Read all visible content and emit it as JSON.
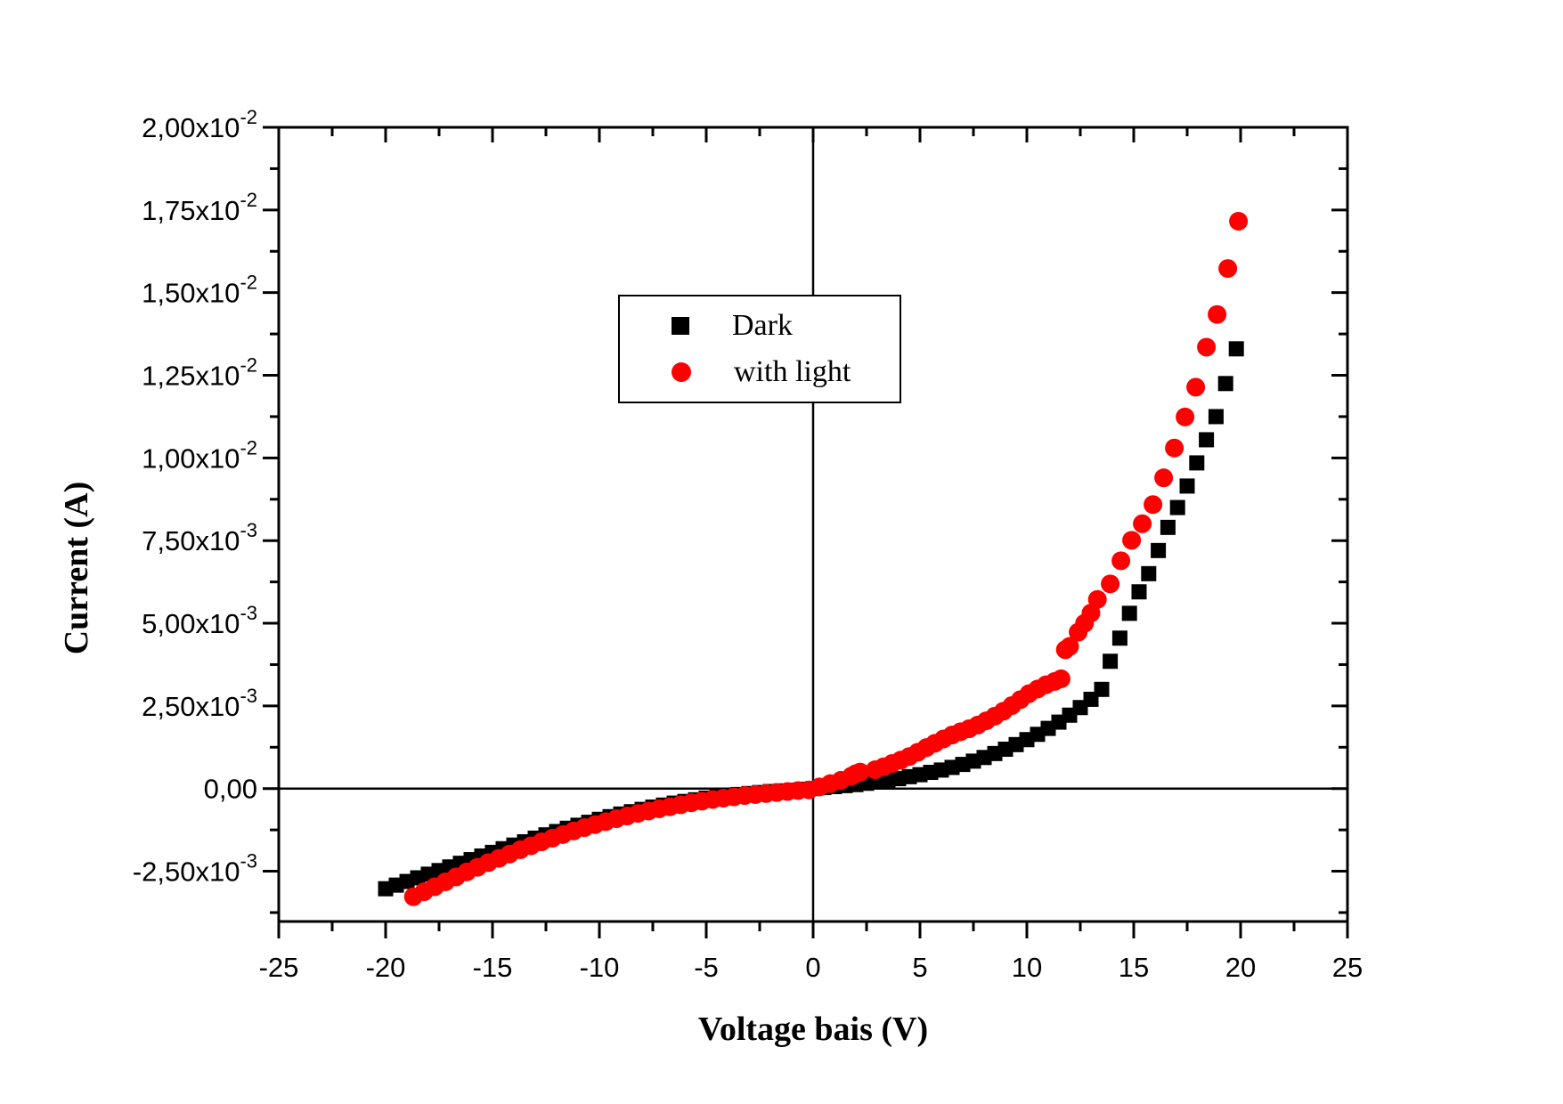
{
  "chart_data": {
    "type": "scatter",
    "title": "",
    "xlabel": "Voltage bais (V)",
    "ylabel": "Current (A)",
    "xlim": [
      -25,
      25
    ],
    "ylim": [
      -0.00402,
      0.02
    ],
    "grid": false,
    "background": "#ffffff",
    "axis_color": "#000000",
    "zero_lines": true,
    "x_ticks": [
      -25,
      -20,
      -15,
      -10,
      -5,
      0,
      5,
      10,
      15,
      20,
      25
    ],
    "x_minor_step": 2.5,
    "y_minor_step": 0.00125,
    "superscript_joiner": "x10",
    "y_ticks": [
      {
        "v": 0.02,
        "m": "2,00",
        "e": "-2"
      },
      {
        "v": 0.0175,
        "m": "1,75",
        "e": "-2"
      },
      {
        "v": 0.015,
        "m": "1,50",
        "e": "-2"
      },
      {
        "v": 0.0125,
        "m": "1,25",
        "e": "-2"
      },
      {
        "v": 0.01,
        "m": "1,00",
        "e": "-2"
      },
      {
        "v": 0.0075,
        "m": "7,50",
        "e": "-3"
      },
      {
        "v": 0.005,
        "m": "5,00",
        "e": "-3"
      },
      {
        "v": 0.0025,
        "m": "2,50",
        "e": "-3"
      },
      {
        "v": 0,
        "m": "0,00",
        "e": null
      },
      {
        "v": -0.0025,
        "m": "-2,50",
        "e": "-3"
      }
    ],
    "legend": {
      "position": "top-center",
      "border_color": "#000000",
      "background": "#ffffff",
      "entries": [
        {
          "label": "Dark",
          "marker": "square",
          "color": "#000000"
        },
        {
          "label": "with light",
          "marker": "circle",
          "color": "#ff0000"
        }
      ]
    },
    "series": [
      {
        "name": "Dark",
        "marker": "square",
        "color": "#000000",
        "points": [
          [
            -20,
            -0.00303
          ],
          [
            -19.5,
            -0.00292
          ],
          [
            -19,
            -0.00281
          ],
          [
            -18.5,
            -0.0027
          ],
          [
            -18,
            -0.00259
          ],
          [
            -17.5,
            -0.00248
          ],
          [
            -17,
            -0.00237
          ],
          [
            -16.5,
            -0.00226
          ],
          [
            -16,
            -0.00215
          ],
          [
            -15.5,
            -0.00204
          ],
          [
            -15,
            -0.00193
          ],
          [
            -14.5,
            -0.00182
          ],
          [
            -14,
            -0.00171
          ],
          [
            -13.5,
            -0.00161
          ],
          [
            -13,
            -0.0015
          ],
          [
            -12.5,
            -0.0014
          ],
          [
            -12,
            -0.0013
          ],
          [
            -11.5,
            -0.0012
          ],
          [
            -11,
            -0.00111
          ],
          [
            -10.5,
            -0.00102
          ],
          [
            -10,
            -0.00093
          ],
          [
            -9.5,
            -0.00085
          ],
          [
            -9,
            -0.00077
          ],
          [
            -8.5,
            -0.0007
          ],
          [
            -8,
            -0.00063
          ],
          [
            -7.5,
            -0.00056
          ],
          [
            -7,
            -0.0005
          ],
          [
            -6.5,
            -0.00044
          ],
          [
            -6,
            -0.00039
          ],
          [
            -5.5,
            -0.00034
          ],
          [
            -5,
            -0.00029
          ],
          [
            -4.5,
            -0.00025
          ],
          [
            -4,
            -0.00021
          ],
          [
            -3.5,
            -0.00018
          ],
          [
            -3,
            -0.00015
          ],
          [
            -2.5,
            -0.00012
          ],
          [
            -2,
            -9e-05
          ],
          [
            -1.5,
            -7e-05
          ],
          [
            -1,
            -5e-05
          ],
          [
            -0.5,
            -2e-05
          ],
          [
            0,
            0
          ],
          [
            0.5,
            3e-05
          ],
          [
            1,
            6e-05
          ],
          [
            1.5,
            9e-05
          ],
          [
            2,
            0.00012
          ],
          [
            2.5,
            0.00016
          ],
          [
            3,
            0.0002
          ],
          [
            3.5,
            0.00025
          ],
          [
            4,
            0.0003
          ],
          [
            4.5,
            0.00036
          ],
          [
            5,
            0.00042
          ],
          [
            5.5,
            0.00049
          ],
          [
            6,
            0.00056
          ],
          [
            6.5,
            0.00064
          ],
          [
            7,
            0.00073
          ],
          [
            7.5,
            0.00083
          ],
          [
            8,
            0.00094
          ],
          [
            8.5,
            0.00106
          ],
          [
            9,
            0.00119
          ],
          [
            9.5,
            0.00133
          ],
          [
            10,
            0.00148
          ],
          [
            10.5,
            0.00164
          ],
          [
            11,
            0.00182
          ],
          [
            11.5,
            0.00201
          ],
          [
            12,
            0.00222
          ],
          [
            12.5,
            0.00245
          ],
          [
            13,
            0.0027
          ],
          [
            13.5,
            0.003
          ],
          [
            13.9,
            0.00385
          ],
          [
            14.35,
            0.00455
          ],
          [
            14.8,
            0.0053
          ],
          [
            15.25,
            0.00595
          ],
          [
            15.7,
            0.0065
          ],
          [
            16.15,
            0.0072
          ],
          [
            16.6,
            0.0079
          ],
          [
            17.05,
            0.0085
          ],
          [
            17.5,
            0.00915
          ],
          [
            17.95,
            0.00985
          ],
          [
            18.4,
            0.01055
          ],
          [
            18.85,
            0.01125
          ],
          [
            19.3,
            0.01225
          ],
          [
            19.8,
            0.0133
          ]
        ]
      },
      {
        "name": "with light",
        "marker": "circle",
        "color": "#ff0000",
        "points": [
          [
            -18.7,
            -0.00327
          ],
          [
            -18.2,
            -0.00312
          ],
          [
            -17.7,
            -0.00297
          ],
          [
            -17.2,
            -0.00282
          ],
          [
            -16.7,
            -0.00267
          ],
          [
            -16.2,
            -0.00252
          ],
          [
            -15.7,
            -0.00238
          ],
          [
            -15.2,
            -0.00224
          ],
          [
            -14.7,
            -0.00211
          ],
          [
            -14.2,
            -0.00198
          ],
          [
            -13.7,
            -0.00185
          ],
          [
            -13.2,
            -0.00173
          ],
          [
            -12.7,
            -0.00161
          ],
          [
            -12.2,
            -0.0015
          ],
          [
            -11.7,
            -0.00139
          ],
          [
            -11.2,
            -0.00128
          ],
          [
            -10.7,
            -0.00118
          ],
          [
            -10.2,
            -0.00109
          ],
          [
            -9.7,
            -0.001
          ],
          [
            -9.2,
            -0.00091
          ],
          [
            -8.7,
            -0.00083
          ],
          [
            -8.2,
            -0.00075
          ],
          [
            -7.7,
            -0.00068
          ],
          [
            -7.2,
            -0.00061
          ],
          [
            -6.7,
            -0.00055
          ],
          [
            -6.2,
            -0.00049
          ],
          [
            -5.7,
            -0.00043
          ],
          [
            -5.2,
            -0.00038
          ],
          [
            -4.7,
            -0.00033
          ],
          [
            -4.2,
            -0.00029
          ],
          [
            -3.7,
            -0.00025
          ],
          [
            -3.2,
            -0.00021
          ],
          [
            -2.7,
            -0.00018
          ],
          [
            -2.2,
            -0.00015
          ],
          [
            -1.7,
            -0.00012
          ],
          [
            -1.2,
            -9e-05
          ],
          [
            -0.7,
            -6e-05
          ],
          [
            -0.2,
            -4e-05
          ],
          [
            0.3,
            5e-05
          ],
          [
            0.8,
            0.00015
          ],
          [
            1.3,
            0.00025
          ],
          [
            1.8,
            0.00038
          ],
          [
            2,
            0.00045
          ],
          [
            2.2,
            0.0005
          ],
          [
            2.9,
            0.00057
          ],
          [
            3.3,
            0.00066
          ],
          [
            3.7,
            0.00076
          ],
          [
            4.1,
            0.00086
          ],
          [
            4.5,
            0.00097
          ],
          [
            4.9,
            0.0011
          ],
          [
            5.3,
            0.00124
          ],
          [
            5.7,
            0.00137
          ],
          [
            6.1,
            0.0015
          ],
          [
            6.5,
            0.00162
          ],
          [
            6.9,
            0.00172
          ],
          [
            7.3,
            0.00181
          ],
          [
            7.7,
            0.00192
          ],
          [
            8.1,
            0.00205
          ],
          [
            8.5,
            0.00219
          ],
          [
            8.9,
            0.00234
          ],
          [
            9.3,
            0.00251
          ],
          [
            9.7,
            0.00269
          ],
          [
            10.1,
            0.00287
          ],
          [
            10.5,
            0.00301
          ],
          [
            10.9,
            0.00314
          ],
          [
            11.3,
            0.00324
          ],
          [
            11.6,
            0.00332
          ],
          [
            11.8,
            0.0042
          ],
          [
            12,
            0.0043
          ],
          [
            12.4,
            0.00473
          ],
          [
            12.7,
            0.005
          ],
          [
            13,
            0.00531
          ],
          [
            13.3,
            0.00572
          ],
          [
            13.9,
            0.00619
          ],
          [
            14.4,
            0.00689
          ],
          [
            14.9,
            0.00751
          ],
          [
            15.4,
            0.00801
          ],
          [
            15.9,
            0.00859
          ],
          [
            16.4,
            0.0094
          ],
          [
            16.9,
            0.0103
          ],
          [
            17.4,
            0.01124
          ],
          [
            17.9,
            0.01214
          ],
          [
            18.4,
            0.01335
          ],
          [
            18.9,
            0.01434
          ],
          [
            19.4,
            0.01573
          ],
          [
            19.9,
            0.01716
          ]
        ]
      }
    ]
  }
}
